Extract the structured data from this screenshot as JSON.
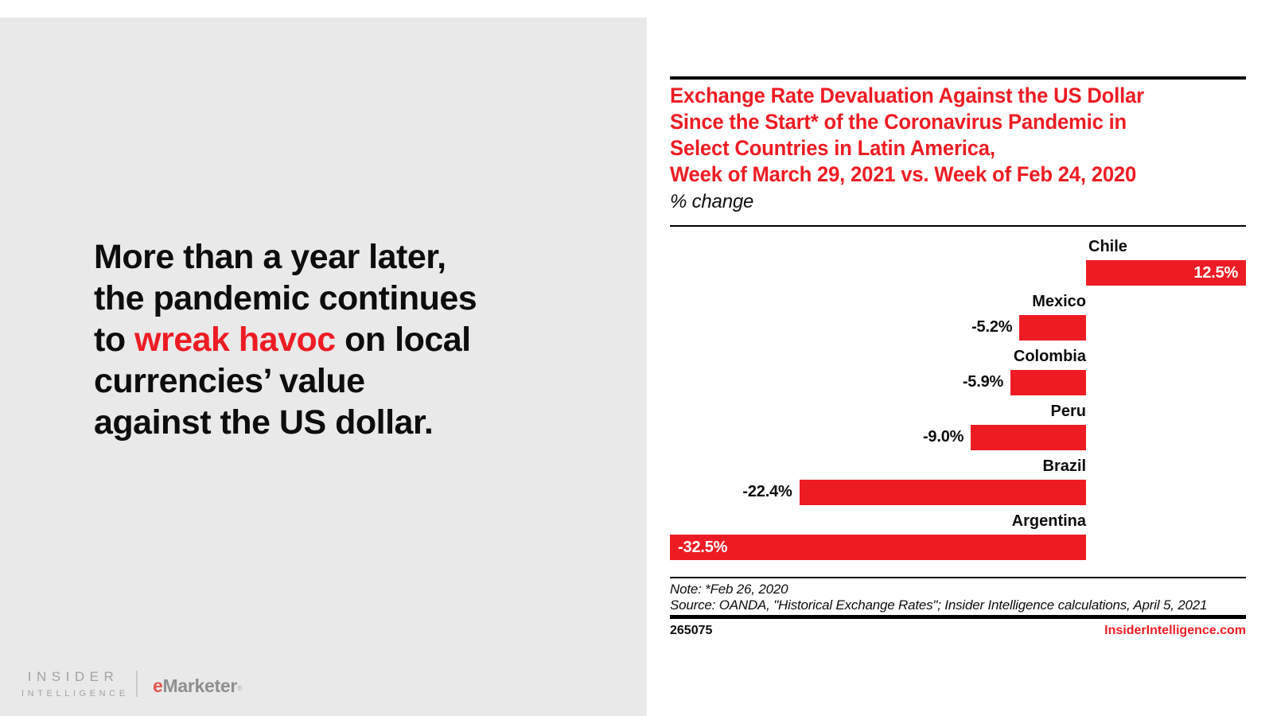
{
  "page": {
    "background_color": "#ffffff",
    "panel_color": "#e9e9e9",
    "accent_red": "#ed1c24"
  },
  "headline": {
    "before": "More than a year later,\nthe pandemic continues\nto ",
    "highlight": "wreak havoc",
    "after": " on local\ncurrencies’ value\nagainst the US dollar."
  },
  "chart": {
    "title": "Exchange Rate Devaluation Against the US Dollar\nSince the Start* of the Coronavirus Pandemic in\nSelect Countries in Latin America,\nWeek of March 29, 2021 vs. Week of Feb 24, 2020",
    "subtitle": "% change",
    "notes": "Note: *Feb 26, 2020\nSource: OANDA, \"Historical Exchange Rates\"; Insider Intelligence calculations, April 5, 2021",
    "chart_id": "265075",
    "website": "InsiderIntelligence.com"
  },
  "chart_data": {
    "type": "bar",
    "orientation": "horizontal",
    "title": "Exchange Rate Devaluation Against the US Dollar Since the Start* of the Coronavirus Pandemic in Select Countries in Latin America, Week of March 29, 2021 vs. Week of Feb 24, 2020",
    "xlabel": "% change",
    "categories": [
      "Chile",
      "Mexico",
      "Colombia",
      "Peru",
      "Brazil",
      "Argentina"
    ],
    "values": [
      12.5,
      -5.2,
      -5.9,
      -9.0,
      -22.4,
      -32.5
    ],
    "value_labels": [
      "12.5%",
      "-5.2%",
      "-5.9%",
      "-9.0%",
      "-22.4%",
      "-32.5%"
    ],
    "value_label_inside": [
      true,
      false,
      false,
      false,
      false,
      true
    ],
    "bar_color": "#ed1c24",
    "xlim": [
      -32.5,
      12.5
    ],
    "grid": false,
    "note": "Note: *Feb 26, 2020",
    "source": "Source: OANDA, \"Historical Exchange Rates\"; Insider Intelligence calculations, April 5, 2021"
  },
  "branding": {
    "insider_line1": "INSIDER",
    "insider_line2": "INTELLIGENCE",
    "emarketer_e": "e",
    "emarketer_rest": "Marketer",
    "registered": "®"
  }
}
